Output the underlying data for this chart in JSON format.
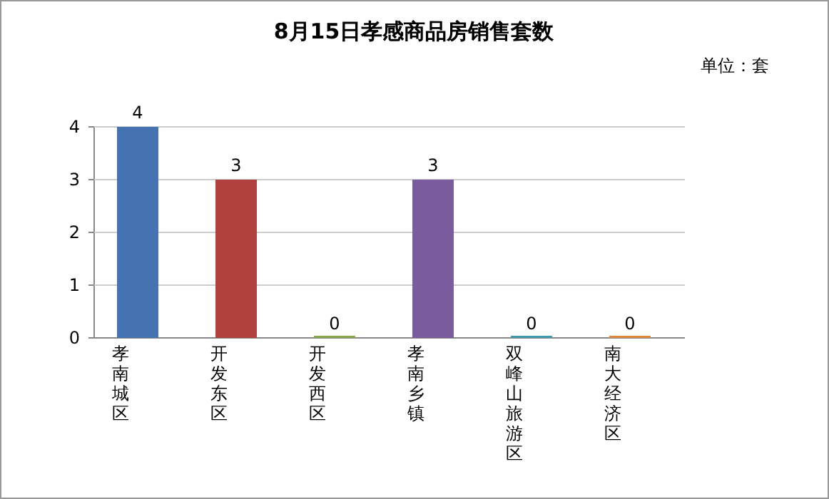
{
  "chart_data": {
    "type": "bar",
    "title": "8月15日孝感商品房销售套数",
    "subtitle": "单位：套",
    "categories": [
      "孝南城区",
      "开发东区",
      "开发西区",
      "孝南乡镇",
      "双峰山旅游区",
      "南大经济区"
    ],
    "values": [
      4,
      3,
      0,
      3,
      0,
      0
    ],
    "colors": [
      "#4572b0",
      "#b0413e",
      "#88a94a",
      "#7a5c9e",
      "#3d98b0",
      "#e0893a"
    ],
    "ylim": [
      0,
      4
    ],
    "yticks": [
      0,
      1,
      2,
      3,
      4
    ],
    "grid": "y",
    "data_labels": true
  }
}
